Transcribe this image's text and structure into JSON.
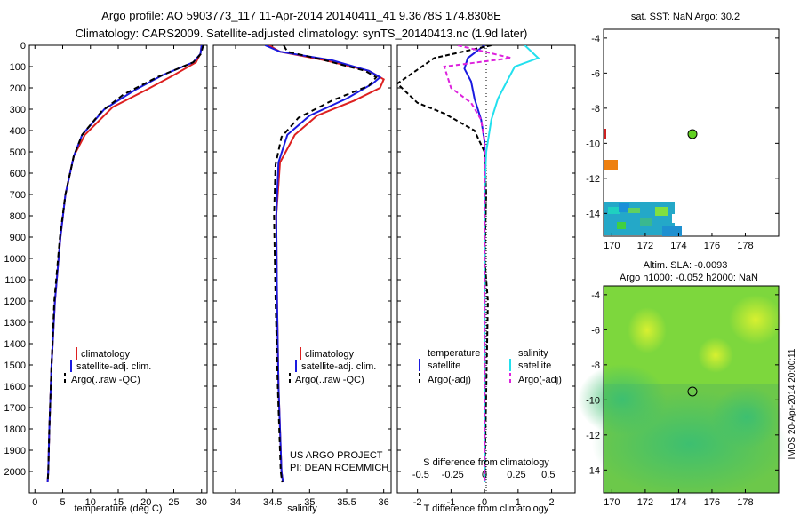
{
  "title_line1": "Argo profile: AO 5903773_117 11-Apr-2014 20140411_41 9.3678S 174.8308E",
  "title_line2": "Climatology: CARS2009. Satellite-adjusted climatology: synTS_20140413.nc (1.9d later)",
  "sst_title": "sat. SST: NaN Argo: 30.2",
  "sla_title1": "Altim. SLA: -0.0093",
  "sla_title2": "Argo h1000: -0.052 h2000: NaN",
  "credit1": "US ARGO PROJECT",
  "credit2": "PI: DEAN ROEMMICH",
  "watermark": "IMOS 20-Apr-2014 20:00:11",
  "legend_temp": {
    "items": [
      "climatology",
      "satellite-adj. clim.",
      "Argo(..raw -QC)"
    ]
  },
  "legend_sal": {
    "items": [
      "climatology",
      "satellite-adj. clim.",
      "Argo(..raw -QC)"
    ]
  },
  "legend_diff": {
    "head_t": "temperature",
    "head_s": "salinity",
    "t_items": [
      "satellite",
      "Argo(-adj)"
    ],
    "s_items": [
      "satellite",
      "Argo(-adj)"
    ]
  },
  "colors": {
    "climatology": "#dd2020",
    "satellite": "#1a1ae0",
    "argo": "#000000",
    "s_satellite": "#22e0ee",
    "s_argo": "#dd22dd"
  },
  "chart_data": [
    {
      "type": "line",
      "xlabel": "temperature (deg C)",
      "ylabel": "",
      "xlim": [
        -1,
        31
      ],
      "ylim": [
        2100,
        0
      ],
      "xticks": [
        0,
        5,
        10,
        15,
        20,
        25,
        30
      ],
      "yticks": [
        0,
        100,
        200,
        300,
        400,
        500,
        600,
        700,
        800,
        900,
        1000,
        1100,
        1200,
        1300,
        1400,
        1500,
        1600,
        1700,
        1800,
        1900,
        2000
      ],
      "series": [
        {
          "name": "climatology",
          "x": [
            30,
            29.8,
            29,
            25,
            20,
            14,
            9,
            7,
            5.5,
            4.6,
            3.6,
            3.0,
            2.6,
            2.4,
            2.3
          ],
          "y": [
            0,
            40,
            80,
            140,
            210,
            290,
            420,
            520,
            700,
            900,
            1200,
            1500,
            1800,
            2000,
            2050
          ]
        },
        {
          "name": "satellite-adj. clim.",
          "x": [
            30,
            29.8,
            28.5,
            23,
            18,
            12.5,
            8.5,
            7,
            5.5,
            4.6,
            3.6,
            3.0,
            2.6,
            2.4,
            2.3
          ],
          "y": [
            0,
            40,
            80,
            140,
            210,
            300,
            420,
            520,
            700,
            900,
            1200,
            1500,
            1800,
            2000,
            2050
          ]
        },
        {
          "name": "Argo(..raw -QC)",
          "x": [
            30.3,
            29.9,
            28.5,
            22,
            16,
            12,
            8.5,
            7,
            5.5,
            4.5,
            3.5,
            3.0,
            2.6,
            2.4,
            2.3
          ],
          "y": [
            0,
            40,
            80,
            150,
            230,
            310,
            420,
            520,
            700,
            900,
            1200,
            1500,
            1800,
            2000,
            2050
          ]
        }
      ]
    },
    {
      "type": "line",
      "xlabel": "salinity",
      "ylabel": "",
      "xlim": [
        33.7,
        36.1
      ],
      "ylim": [
        2100,
        0
      ],
      "xticks": [
        34,
        34.5,
        35,
        35.5,
        36
      ],
      "series": [
        {
          "name": "climatology",
          "x": [
            34.45,
            34.6,
            35.2,
            35.8,
            36.0,
            35.95,
            35.6,
            35.1,
            34.8,
            34.6,
            34.55,
            34.56,
            34.58,
            34.62,
            34.64
          ],
          "y": [
            0,
            30,
            70,
            120,
            160,
            200,
            260,
            330,
            420,
            550,
            800,
            1200,
            1600,
            2000,
            2050
          ]
        },
        {
          "name": "satellite-adj. clim.",
          "x": [
            34.4,
            34.6,
            35.3,
            35.8,
            35.95,
            35.85,
            35.5,
            35.0,
            34.7,
            34.58,
            34.55,
            34.56,
            34.58,
            34.62,
            34.64
          ],
          "y": [
            0,
            30,
            70,
            120,
            150,
            180,
            250,
            330,
            420,
            550,
            800,
            1200,
            1600,
            2000,
            2050
          ]
        },
        {
          "name": "Argo(..raw -QC)",
          "x": [
            34.65,
            34.7,
            35.2,
            35.75,
            35.9,
            35.8,
            35.3,
            34.85,
            34.62,
            34.54,
            34.52,
            34.54,
            34.57,
            34.61,
            34.63
          ],
          "y": [
            0,
            30,
            70,
            120,
            150,
            190,
            260,
            340,
            430,
            560,
            800,
            1200,
            1600,
            2000,
            2050
          ]
        }
      ]
    },
    {
      "type": "line",
      "xlabel": "T difference from climatology",
      "title_top": "S difference from climatology",
      "xlim": [
        -2.6,
        2.7
      ],
      "ylim": [
        2100,
        0
      ],
      "xticks": [
        -2,
        -1,
        0,
        1,
        2
      ],
      "top_ticks": [
        "-0.5",
        "-0.25",
        "0",
        "0.25",
        "0.5"
      ],
      "series": [
        {
          "name": "temperature satellite",
          "x": [
            0,
            -0.5,
            -0.6,
            -0.4,
            -0.3,
            -0.1,
            0,
            0,
            0,
            0,
            0
          ],
          "y": [
            0,
            60,
            110,
            170,
            250,
            350,
            450,
            600,
            1000,
            1500,
            2050
          ]
        },
        {
          "name": "temperature Argo(-adj)",
          "x": [
            0.2,
            -1.5,
            -2.6,
            -2.0,
            -1.2,
            -0.3,
            0,
            0.05,
            0,
            0.1,
            0
          ],
          "y": [
            0,
            60,
            180,
            270,
            320,
            400,
            500,
            700,
            1000,
            1200,
            2050
          ]
        },
        {
          "name": "salinity satellite",
          "x": [
            1.2,
            1.6,
            0.9,
            0.7,
            0.4,
            0.2,
            0.05,
            0,
            0,
            0
          ],
          "y": [
            0,
            60,
            100,
            160,
            250,
            350,
            500,
            700,
            1200,
            2050
          ]
        },
        {
          "name": "salinity Argo(-adj)",
          "x": [
            -0.8,
            0.8,
            -1.2,
            -1.0,
            -0.4,
            -0.1,
            0,
            0,
            0,
            0
          ],
          "y": [
            0,
            60,
            100,
            200,
            270,
            350,
            450,
            600,
            1200,
            2050
          ]
        }
      ]
    },
    {
      "type": "heatmap",
      "title": "sat. SST: NaN Argo: 30.2",
      "xlim": [
        169.5,
        180
      ],
      "ylim": [
        -15.3,
        -3.5
      ],
      "xticks": [
        170,
        172,
        174,
        176,
        178
      ],
      "yticks": [
        -4,
        -6,
        -8,
        -10,
        -12,
        -14
      ],
      "argo_position": [
        174.83,
        -9.37
      ]
    },
    {
      "type": "heatmap",
      "title": "Altim. SLA: -0.0093",
      "xlim": [
        169.5,
        180
      ],
      "ylim": [
        -15.3,
        -3.5
      ],
      "xticks": [
        170,
        172,
        174,
        176,
        178
      ],
      "yticks": [
        -4,
        -6,
        -8,
        -10,
        -12,
        -14
      ],
      "argo_position": [
        174.83,
        -9.37
      ]
    }
  ]
}
